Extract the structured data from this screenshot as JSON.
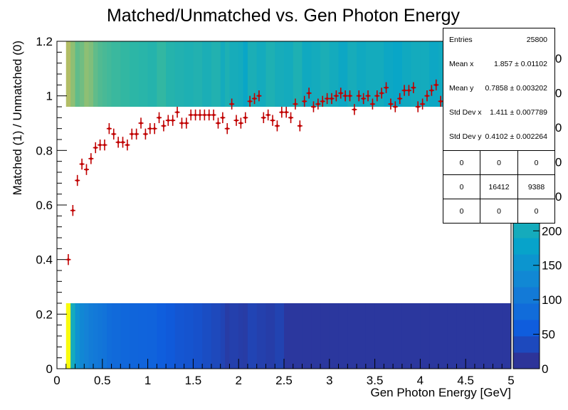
{
  "chart_data": {
    "type": "heatmap",
    "title": "Matched/Unmatched vs. Gen Photon Energy",
    "xlabel": "Gen Photon Energy [GeV]",
    "ylabel": "Matched (1) / Unmatched (0)",
    "xlim": [
      0,
      5
    ],
    "ylim": [
      0,
      1.2
    ],
    "x_ticks": [
      "0",
      "0.5",
      "1",
      "1.5",
      "2",
      "2.5",
      "3",
      "3.5",
      "4",
      "4.5",
      "5"
    ],
    "y_ticks": [
      "0",
      "0.2",
      "0.4",
      "0.6",
      "0.8",
      "1",
      "1.2"
    ],
    "colorbar_ticks": [
      "0",
      "50",
      "100",
      "150",
      "200",
      "250",
      "300",
      "350",
      "400",
      "450"
    ],
    "colorbar_range": [
      0,
      475
    ],
    "heat_bins_x": [
      0.0,
      0.1,
      0.15,
      0.2,
      0.25,
      0.3,
      0.35,
      0.4,
      0.45,
      0.5,
      0.55,
      0.6,
      0.7,
      0.8,
      0.9,
      1.0,
      1.1,
      1.2,
      1.3,
      1.4,
      1.5,
      1.6,
      1.7,
      1.8,
      1.85,
      1.9,
      2.0,
      2.05,
      2.1,
      2.2,
      2.3,
      2.4,
      2.5,
      2.6,
      2.7,
      2.8,
      2.9,
      3.0,
      3.1,
      3.2,
      3.3,
      3.4,
      3.5,
      3.6,
      3.7,
      3.8,
      3.9,
      4.0,
      4.1,
      4.2,
      4.3,
      4.4,
      4.5,
      4.6,
      4.7,
      4.8,
      4.9,
      5.0
    ],
    "heat_row_matched": {
      "y_range": [
        0.96,
        1.2
      ],
      "counts": [
        0,
        330,
        300,
        270,
        280,
        300,
        290,
        270,
        260,
        255,
        250,
        245,
        240,
        235,
        230,
        225,
        240,
        225,
        220,
        215,
        220,
        210,
        220,
        200,
        215,
        205,
        200,
        185,
        210,
        200,
        215,
        205,
        200,
        215,
        195,
        200,
        210,
        200,
        190,
        205,
        195,
        200,
        200,
        190,
        185,
        195,
        200,
        200,
        190,
        195,
        185,
        195,
        200,
        190,
        195,
        190,
        185
      ]
    },
    "heat_row_unmatched": {
      "y_range": [
        0.0,
        0.24
      ],
      "counts": [
        0,
        475,
        200,
        150,
        130,
        120,
        110,
        105,
        100,
        95,
        85,
        80,
        75,
        72,
        70,
        68,
        60,
        55,
        50,
        48,
        45,
        40,
        35,
        30,
        20,
        25,
        22,
        20,
        30,
        25,
        22,
        28,
        15,
        15,
        15,
        15,
        15,
        15,
        15,
        15,
        15,
        15,
        15,
        15,
        15,
        15,
        15,
        15,
        15,
        15,
        15,
        15,
        15,
        15,
        15,
        15,
        15
      ]
    },
    "profile_series": {
      "name": "",
      "color": "#c00000",
      "x": [
        0.125,
        0.175,
        0.225,
        0.275,
        0.325,
        0.375,
        0.425,
        0.475,
        0.525,
        0.575,
        0.625,
        0.675,
        0.725,
        0.775,
        0.825,
        0.875,
        0.925,
        0.975,
        1.025,
        1.075,
        1.125,
        1.175,
        1.225,
        1.275,
        1.325,
        1.375,
        1.425,
        1.475,
        1.525,
        1.575,
        1.625,
        1.675,
        1.725,
        1.775,
        1.825,
        1.875,
        1.925,
        1.975,
        2.025,
        2.075,
        2.125,
        2.175,
        2.225,
        2.275,
        2.325,
        2.375,
        2.425,
        2.475,
        2.525,
        2.575,
        2.625,
        2.675,
        2.725,
        2.775,
        2.825,
        2.875,
        2.925,
        2.975,
        3.025,
        3.075,
        3.125,
        3.175,
        3.225,
        3.275,
        3.325,
        3.375,
        3.425,
        3.475,
        3.525,
        3.575,
        3.625,
        3.675,
        3.725,
        3.775,
        3.825,
        3.875,
        3.925,
        3.975,
        4.025,
        4.075,
        4.125,
        4.175,
        4.225,
        4.275,
        4.325,
        4.375,
        4.425,
        4.475,
        4.525,
        4.575,
        4.625,
        4.675,
        4.725,
        4.775,
        4.825,
        4.875,
        4.925,
        4.975
      ],
      "y": [
        0.4,
        0.58,
        0.69,
        0.75,
        0.73,
        0.77,
        0.81,
        0.82,
        0.82,
        0.88,
        0.86,
        0.83,
        0.83,
        0.82,
        0.86,
        0.86,
        0.9,
        0.86,
        0.88,
        0.88,
        0.92,
        0.89,
        0.91,
        0.91,
        0.94,
        0.9,
        0.9,
        0.93,
        0.93,
        0.93,
        0.93,
        0.93,
        0.93,
        0.9,
        0.92,
        0.88,
        0.97,
        0.91,
        0.9,
        0.92,
        0.98,
        0.99,
        1.0,
        0.92,
        0.93,
        0.91,
        0.89,
        0.94,
        0.94,
        0.92,
        0.97,
        0.89,
        0.98,
        1.01,
        0.96,
        0.97,
        0.98,
        0.99,
        0.99,
        1.0,
        1.01,
        1.0,
        1.0,
        0.95,
        1.0,
        0.99,
        1.0,
        0.97,
        1.0,
        1.01,
        1.03,
        0.97,
        0.96,
        0.99,
        1.02,
        1.02,
        1.03,
        0.96,
        0.97,
        1.0,
        1.02,
        1.04,
        0.98,
        0.98,
        0.97,
        1.0,
        0.99,
        1.02,
        1.02,
        1.0,
        1.0,
        0.98,
        0.98,
        0.99,
        0.99,
        1.0,
        0.99,
        0.96
      ],
      "yerr": 0.02
    }
  },
  "stats": {
    "entries_label": "Entries",
    "entries_value": "25800",
    "meanx_label": "Mean x",
    "meanx_value": "1.857 ± 0.01102",
    "meany_label": "Mean y",
    "meany_value": "0.7858 ± 0.003202",
    "stdx_label": "Std Dev x",
    "stdx_value": "1.411 ± 0.007789",
    "stdy_label": "Std Dev y",
    "stdy_value": "0.4102 ± 0.002264",
    "grid": [
      [
        "0",
        "0",
        "0"
      ],
      [
        "0",
        "16412",
        "9388"
      ],
      [
        "0",
        "0",
        "0"
      ]
    ]
  }
}
